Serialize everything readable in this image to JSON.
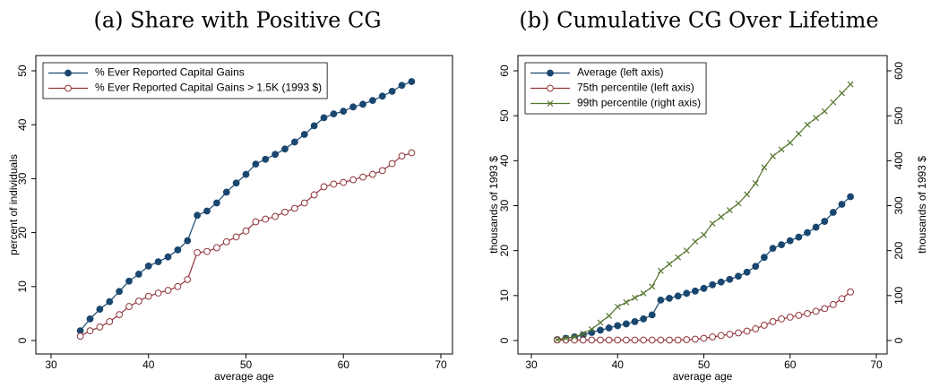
{
  "chart_data": [
    {
      "type": "line",
      "title": "(a) Share with Positive CG",
      "x_label": "average age",
      "y_label": "percent of individuals",
      "x": [
        33,
        34,
        35,
        36,
        37,
        38,
        39,
        40,
        41,
        42,
        43,
        44,
        45,
        46,
        47,
        48,
        49,
        50,
        51,
        52,
        53,
        54,
        55,
        56,
        57,
        58,
        59,
        60,
        61,
        62,
        63,
        64,
        65,
        66,
        67
      ],
      "xlim": [
        30,
        70
      ],
      "xticks": [
        30,
        40,
        50,
        60,
        70
      ],
      "ylim": [
        0,
        50
      ],
      "yticks": [
        0,
        10,
        20,
        30,
        40,
        50
      ],
      "legend": "top-left",
      "series": [
        {
          "name": "% Ever Reported Capital Gains",
          "color": "#1a476f",
          "marker": "circle",
          "values": [
            1.8,
            4,
            5.8,
            7.2,
            9.1,
            11,
            12.3,
            13.8,
            14.6,
            15.5,
            16.8,
            18.5,
            23.2,
            24,
            25.5,
            27.5,
            29.2,
            30.8,
            32.7,
            33.6,
            34.5,
            35.5,
            36.8,
            38.2,
            39.8,
            41.3,
            42,
            42.5,
            43.3,
            43.8,
            44.5,
            45.3,
            46.2,
            47.3,
            48
          ]
        },
        {
          "name": "% Ever Reported Capital Gains > 1.5K (1993 $)",
          "color": "#90353b",
          "marker": "hollow-circle",
          "values": [
            0.8,
            1.8,
            2.5,
            3.5,
            4.8,
            6.3,
            7.3,
            8.2,
            8.8,
            9.3,
            10,
            11.3,
            16.3,
            16.5,
            17.2,
            18.3,
            19.2,
            20.3,
            22,
            22.5,
            23,
            23.8,
            24.5,
            25.5,
            27,
            28.5,
            29,
            29.3,
            29.8,
            30.3,
            30.8,
            31.5,
            32.8,
            34.2,
            34.8
          ]
        }
      ]
    },
    {
      "type": "line",
      "title": "(b) Cumulative CG Over Lifetime",
      "x_label": "average age",
      "y_label": "thousands of 1993 $",
      "y2_label": "thousands of 1993 $",
      "x": [
        33,
        34,
        35,
        36,
        37,
        38,
        39,
        40,
        41,
        42,
        43,
        44,
        45,
        46,
        47,
        48,
        49,
        50,
        51,
        52,
        53,
        54,
        55,
        56,
        57,
        58,
        59,
        60,
        61,
        62,
        63,
        64,
        65,
        66,
        67
      ],
      "xlim": [
        30,
        70
      ],
      "xticks": [
        30,
        40,
        50,
        60,
        70
      ],
      "ylim": [
        0,
        60
      ],
      "yticks": [
        0,
        10,
        20,
        30,
        40,
        50,
        60
      ],
      "y2lim": [
        0,
        600
      ],
      "y2ticks": [
        0,
        100,
        200,
        300,
        400,
        500,
        600
      ],
      "legend": "top-left",
      "series": [
        {
          "name": "Average (left axis)",
          "color": "#1a476f",
          "marker": "circle",
          "values": [
            0.2,
            0.5,
            0.8,
            1.2,
            1.8,
            2.3,
            2.8,
            3.3,
            3.7,
            4.2,
            4.8,
            5.7,
            9,
            9.4,
            9.9,
            10.5,
            11,
            11.6,
            12.4,
            13,
            13.6,
            14.3,
            15.2,
            16.5,
            18.5,
            20.5,
            21.3,
            22.2,
            23,
            24,
            25.2,
            26.5,
            28.5,
            30.3,
            32
          ]
        },
        {
          "name": "75th percentile (left axis)",
          "color": "#90353b",
          "marker": "hollow-circle",
          "values": [
            0.1,
            0.1,
            0.1,
            0.1,
            0.1,
            0.1,
            0.1,
            0.1,
            0.1,
            0.1,
            0.1,
            0.1,
            0.1,
            0.1,
            0.1,
            0.2,
            0.3,
            0.5,
            0.8,
            1.1,
            1.4,
            1.7,
            2.1,
            2.6,
            3.4,
            4.2,
            4.8,
            5.2,
            5.6,
            6,
            6.5,
            7.1,
            8,
            9.3,
            10.8
          ]
        },
        {
          "name": "99th percentile (right axis)",
          "color": "#55752f",
          "marker": "x",
          "axis": "y2",
          "values": [
            2,
            5,
            8,
            15,
            25,
            40,
            55,
            75,
            85,
            95,
            105,
            120,
            155,
            170,
            185,
            200,
            220,
            235,
            260,
            275,
            290,
            305,
            325,
            350,
            385,
            410,
            425,
            440,
            460,
            480,
            495,
            510,
            530,
            550,
            570
          ]
        }
      ]
    }
  ]
}
